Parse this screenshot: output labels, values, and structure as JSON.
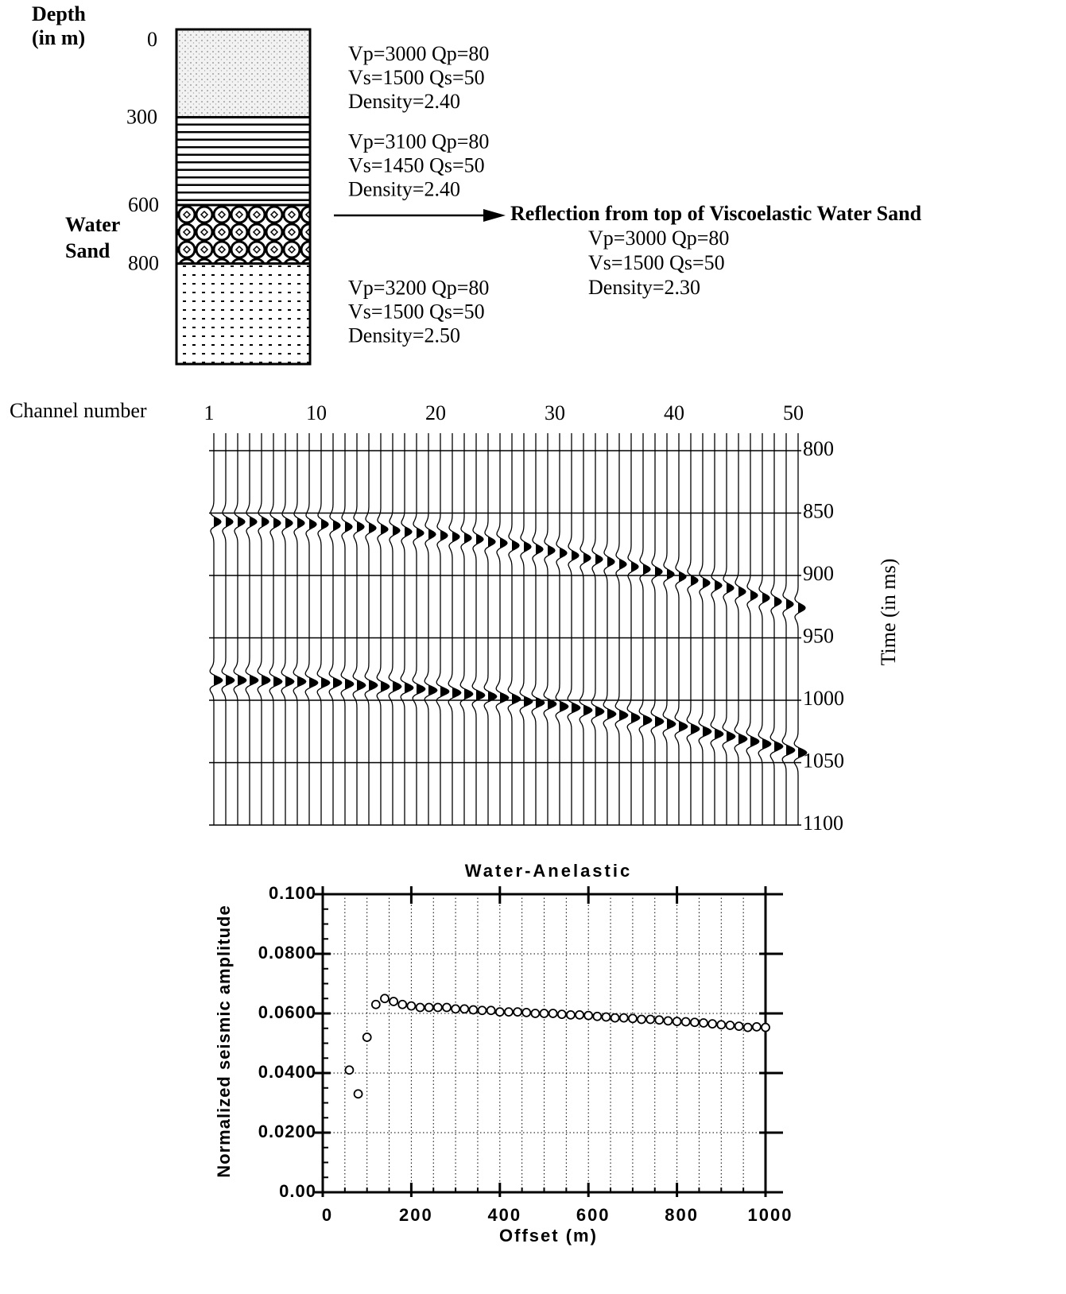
{
  "model": {
    "depth_title": [
      "Depth",
      "(in m)"
    ],
    "depth_ticks": [
      0,
      300,
      600,
      800
    ],
    "layers": [
      {
        "properties": [
          "Vp=3000  Qp=80",
          "Vs=1500  Qs=50",
          "Density=2.40"
        ]
      },
      {
        "properties": [
          "Vp=3100  Qp=80",
          "Vs=1450  Qs=50",
          "Density=2.40"
        ]
      },
      {
        "name": [
          "Water",
          "Sand"
        ],
        "properties": [
          "Vp=3000  Qp=80",
          "Vs=1500  Qs=50",
          "Density=2.30"
        ]
      },
      {
        "properties": [
          "Vp=3200  Qp=80",
          "Vs=1500  Qs=50",
          "Density=2.50"
        ]
      }
    ],
    "arrow_label": "Reflection from top of Viscoelastic Water Sand"
  },
  "chart_data": [
    {
      "type": "seismic",
      "xlabel": "Channel number",
      "ylabel": "Time (in ms)",
      "x": [
        1,
        2,
        3,
        4,
        5,
        6,
        7,
        8,
        9,
        10,
        11,
        12,
        13,
        14,
        15,
        16,
        17,
        18,
        19,
        20,
        21,
        22,
        23,
        24,
        25,
        26,
        27,
        28,
        29,
        30,
        31,
        32,
        33,
        34,
        35,
        36,
        37,
        38,
        39,
        40,
        41,
        42,
        43,
        44,
        45,
        46,
        47,
        48,
        49,
        50
      ],
      "xlim": [
        1,
        50
      ],
      "xticks": [
        1,
        10,
        20,
        30,
        40,
        50
      ],
      "ylim": [
        786,
        1100
      ],
      "yticks": [
        800,
        850,
        900,
        950,
        1000,
        1050,
        1100
      ],
      "grid": true,
      "events": [
        {
          "values": [
            853,
            853,
            853,
            853,
            853,
            854,
            854,
            854,
            855,
            855,
            856,
            857,
            857,
            858,
            859,
            860,
            861,
            862,
            863,
            864,
            865,
            866,
            867,
            869,
            870,
            872,
            873,
            875,
            876,
            878,
            880,
            882,
            883,
            885,
            887,
            889,
            891,
            893,
            895,
            897,
            900,
            902,
            904,
            906,
            909,
            912,
            914,
            917,
            919,
            922
          ]
        },
        {
          "values": [
            980,
            980,
            980,
            980,
            980,
            981,
            981,
            981,
            982,
            982,
            982,
            983,
            984,
            984,
            985,
            985,
            986,
            987,
            988,
            989,
            990,
            991,
            992,
            993,
            994,
            995,
            997,
            998,
            999,
            1001,
            1002,
            1004,
            1005,
            1007,
            1008,
            1010,
            1012,
            1013,
            1015,
            1017,
            1019,
            1021,
            1023,
            1025,
            1027,
            1029,
            1031,
            1033,
            1036,
            1038
          ]
        }
      ]
    },
    {
      "type": "scatter",
      "title": "Water-Anelastic",
      "xlabel": "Offset   (m)",
      "ylabel": "Normalized  seismic  amplitude",
      "xlim": [
        0,
        1000
      ],
      "xticks": [
        0,
        200,
        400,
        600,
        800,
        1000
      ],
      "xminorticks": [
        50,
        100,
        150,
        250,
        300,
        350,
        450,
        500,
        550,
        650,
        700,
        750,
        850,
        900,
        950
      ],
      "ylim": [
        0,
        0.1
      ],
      "yticks": [
        {
          "value": 0,
          "label": "0.00"
        },
        {
          "value": 0.02,
          "label": "0.0200"
        },
        {
          "value": 0.04,
          "label": "0.0400"
        },
        {
          "value": 0.06,
          "label": "0.0600"
        },
        {
          "value": 0.08,
          "label": "0.0800"
        },
        {
          "value": 0.1,
          "label": "0.100"
        }
      ],
      "yminorticks": [
        0.005,
        0.01,
        0.015,
        0.025,
        0.03,
        0.035,
        0.045,
        0.05,
        0.055,
        0.065,
        0.07,
        0.075,
        0.085,
        0.09,
        0.095
      ],
      "grid": true,
      "x": [
        60,
        80,
        100,
        120,
        140,
        160,
        180,
        200,
        220,
        240,
        260,
        280,
        300,
        320,
        340,
        360,
        380,
        400,
        420,
        440,
        460,
        480,
        500,
        520,
        540,
        560,
        580,
        600,
        620,
        640,
        660,
        680,
        700,
        720,
        740,
        760,
        780,
        800,
        820,
        840,
        860,
        880,
        900,
        920,
        940,
        960,
        980,
        1000
      ],
      "values": [
        0.041,
        0.033,
        0.052,
        0.063,
        0.065,
        0.064,
        0.063,
        0.0625,
        0.062,
        0.062,
        0.062,
        0.062,
        0.0615,
        0.0615,
        0.0612,
        0.061,
        0.061,
        0.0605,
        0.0605,
        0.0605,
        0.0603,
        0.06,
        0.06,
        0.06,
        0.0597,
        0.0595,
        0.0595,
        0.0593,
        0.059,
        0.0588,
        0.0585,
        0.0585,
        0.0583,
        0.058,
        0.058,
        0.0578,
        0.0575,
        0.0573,
        0.0572,
        0.057,
        0.0568,
        0.0565,
        0.0562,
        0.056,
        0.0557,
        0.0553,
        0.0555,
        0.0553
      ]
    }
  ]
}
